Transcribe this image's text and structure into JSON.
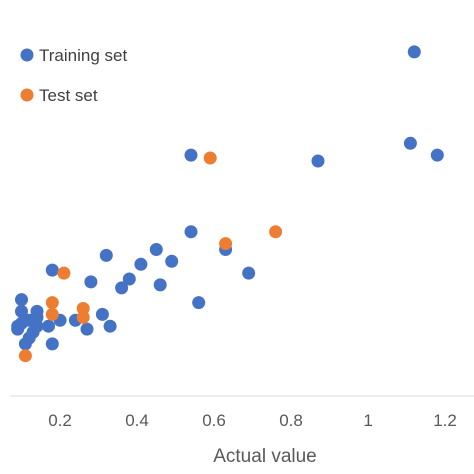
{
  "chart_data": {
    "type": "scatter",
    "title": "",
    "xlabel": "Actual value",
    "ylabel": "",
    "xlim": [
      0,
      1.2
    ],
    "ylim": [
      0,
      1.2
    ],
    "x_ticks": [
      "0.2",
      "0.4",
      "0.6",
      "0.8",
      "1",
      "1.2"
    ],
    "grid": false,
    "legend": "top-left",
    "series": [
      {
        "name": "Training set",
        "color": "#4472C4",
        "points": [
          [
            1.12,
            1.17
          ],
          [
            1.11,
            0.86
          ],
          [
            1.18,
            0.82
          ],
          [
            0.87,
            0.8
          ],
          [
            0.54,
            0.82
          ],
          [
            0.54,
            0.56
          ],
          [
            0.63,
            0.5
          ],
          [
            0.69,
            0.42
          ],
          [
            0.56,
            0.32
          ],
          [
            0.45,
            0.5
          ],
          [
            0.49,
            0.46
          ],
          [
            0.41,
            0.45
          ],
          [
            0.38,
            0.4
          ],
          [
            0.36,
            0.37
          ],
          [
            0.46,
            0.38
          ],
          [
            0.32,
            0.48
          ],
          [
            0.28,
            0.39
          ],
          [
            0.18,
            0.43
          ],
          [
            0.31,
            0.28
          ],
          [
            0.33,
            0.24
          ],
          [
            0.27,
            0.23
          ],
          [
            0.24,
            0.26
          ],
          [
            0.2,
            0.26
          ],
          [
            0.17,
            0.24
          ],
          [
            0.18,
            0.18
          ],
          [
            0.14,
            0.27
          ],
          [
            0.14,
            0.24
          ],
          [
            0.12,
            0.26
          ],
          [
            0.13,
            0.22
          ],
          [
            0.12,
            0.2
          ],
          [
            0.11,
            0.18
          ],
          [
            0.1,
            0.25
          ],
          [
            0.09,
            0.24
          ],
          [
            0.09,
            0.23
          ],
          [
            0.1,
            0.33
          ],
          [
            0.14,
            0.29
          ],
          [
            0.1,
            0.29
          ]
        ]
      },
      {
        "name": "Test set",
        "color": "#ED7D31",
        "points": [
          [
            0.59,
            0.81
          ],
          [
            0.76,
            0.56
          ],
          [
            0.63,
            0.52
          ],
          [
            0.21,
            0.42
          ],
          [
            0.18,
            0.32
          ],
          [
            0.18,
            0.28
          ],
          [
            0.26,
            0.3
          ],
          [
            0.26,
            0.27
          ],
          [
            0.11,
            0.14
          ]
        ]
      }
    ]
  }
}
